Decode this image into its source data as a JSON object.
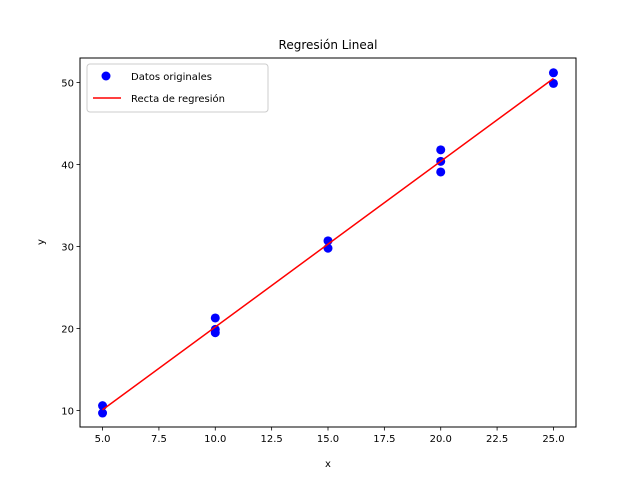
{
  "chart_data": {
    "type": "scatter",
    "title": "Regresión Lineal",
    "xlabel": "x",
    "ylabel": "y",
    "xlim": [
      4.0,
      26.0
    ],
    "ylim": [
      8.0,
      53.0
    ],
    "xticks": [
      5.0,
      7.5,
      10.0,
      12.5,
      15.0,
      17.5,
      20.0,
      22.5,
      25.0
    ],
    "xtick_labels": [
      "5.0",
      "7.5",
      "10.0",
      "12.5",
      "15.0",
      "17.5",
      "20.0",
      "22.5",
      "25.0"
    ],
    "yticks": [
      10,
      20,
      30,
      40,
      50
    ],
    "ytick_labels": [
      "10",
      "20",
      "30",
      "40",
      "50"
    ],
    "grid": false,
    "legend_position": "top-left",
    "series": [
      {
        "name": "Datos originales",
        "kind": "scatter",
        "color": "#0000ff",
        "points": [
          {
            "x": 5,
            "y": 10.6
          },
          {
            "x": 5,
            "y": 9.7
          },
          {
            "x": 10,
            "y": 21.3
          },
          {
            "x": 10,
            "y": 19.9
          },
          {
            "x": 10,
            "y": 19.5
          },
          {
            "x": 15,
            "y": 30.7
          },
          {
            "x": 15,
            "y": 29.8
          },
          {
            "x": 20,
            "y": 41.8
          },
          {
            "x": 20,
            "y": 40.4
          },
          {
            "x": 20,
            "y": 39.1
          },
          {
            "x": 25,
            "y": 51.2
          },
          {
            "x": 25,
            "y": 49.9
          }
        ]
      },
      {
        "name": "Recta de regresión",
        "kind": "line",
        "color": "#ff0000",
        "points": [
          {
            "x": 5,
            "y": 10.1
          },
          {
            "x": 25,
            "y": 50.5
          }
        ]
      }
    ]
  }
}
